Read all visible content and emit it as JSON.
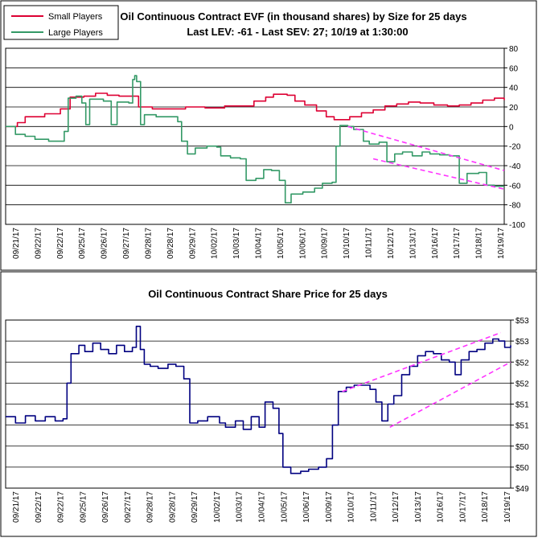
{
  "charts": {
    "top": {
      "title_line1": "Oil Continuous Contract EVF (in thousand shares) by Size for 25 days",
      "title_line2": "Last LEV: -61 - Last SEV: 27; 10/19 at 1:30:00",
      "legend": [
        {
          "label": "Small Players",
          "color": "#dd0033"
        },
        {
          "label": "Large Players",
          "color": "#339966"
        }
      ]
    },
    "bottom": {
      "title": "Oil Continuous Contract Share Price for 25 days"
    }
  },
  "colors": {
    "small_players": "#dd0033",
    "large_players": "#339966",
    "price": "#000080",
    "trendline": "#ff33ff",
    "grid": "#000000"
  },
  "chart_data": [
    {
      "type": "line",
      "title": "Oil Continuous Contract EVF (in thousand shares) by Size for 25 days",
      "subtitle": "Last LEV: -61 - Last SEV: 27; 10/19 at 1:30:00",
      "ylim": [
        -100,
        80
      ],
      "y_ticks": [
        "80",
        "60",
        "40",
        "20",
        "0",
        "-20",
        "-40",
        "-60",
        "-80",
        "-100"
      ],
      "y_axis_position": "right",
      "grid": true,
      "legend_position": "top-left",
      "categories": [
        "09/21/17",
        "09/22/17",
        "09/22/17",
        "09/25/17",
        "09/26/17",
        "09/27/17",
        "09/28/17",
        "09/28/17",
        "09/29/17",
        "10/02/17",
        "10/03/17",
        "10/04/17",
        "10/05/17",
        "10/06/17",
        "10/09/17",
        "10/10/17",
        "10/11/17",
        "10/12/17",
        "10/13/17",
        "10/16/17",
        "10/17/17",
        "10/18/17",
        "10/19/17"
      ],
      "series": [
        {
          "name": "Small Players",
          "color": "#dd0033",
          "points": [
            [
              0,
              0
            ],
            [
              0.6,
              4
            ],
            [
              1.0,
              10
            ],
            [
              2.0,
              13
            ],
            [
              2.8,
              18
            ],
            [
              3.3,
              30
            ],
            [
              4.0,
              31
            ],
            [
              4.6,
              34
            ],
            [
              5.2,
              32
            ],
            [
              5.8,
              31
            ],
            [
              6.3,
              31
            ],
            [
              6.8,
              20
            ],
            [
              7.5,
              18
            ],
            [
              8.2,
              18
            ],
            [
              9.2,
              20
            ],
            [
              10.2,
              19
            ],
            [
              11.2,
              21
            ],
            [
              12.0,
              21
            ],
            [
              12.7,
              26
            ],
            [
              13.3,
              30
            ],
            [
              13.7,
              33
            ],
            [
              14.4,
              32
            ],
            [
              14.8,
              26
            ],
            [
              15.3,
              22
            ],
            [
              15.9,
              16
            ],
            [
              16.4,
              10
            ],
            [
              16.8,
              7
            ],
            [
              17.6,
              10
            ],
            [
              18.2,
              14
            ],
            [
              18.8,
              17
            ],
            [
              19.4,
              21
            ],
            [
              20.0,
              23
            ],
            [
              20.6,
              25
            ],
            [
              21.2,
              24
            ],
            [
              21.9,
              22
            ],
            [
              22.6,
              21
            ],
            [
              23.2,
              22
            ],
            [
              23.8,
              24
            ],
            [
              24.4,
              27
            ],
            [
              25.0,
              29
            ],
            [
              25.5,
              27
            ]
          ]
        },
        {
          "name": "Large Players",
          "color": "#339966",
          "points": [
            [
              0,
              0
            ],
            [
              0.5,
              -8
            ],
            [
              1.0,
              -10
            ],
            [
              1.5,
              -13
            ],
            [
              2.2,
              -15
            ],
            [
              2.8,
              -15
            ],
            [
              3.0,
              -5
            ],
            [
              3.2,
              29
            ],
            [
              3.6,
              31
            ],
            [
              3.9,
              24
            ],
            [
              4.1,
              2
            ],
            [
              4.3,
              28
            ],
            [
              5.0,
              26
            ],
            [
              5.4,
              2
            ],
            [
              5.7,
              25
            ],
            [
              6.3,
              24
            ],
            [
              6.5,
              48
            ],
            [
              6.6,
              52
            ],
            [
              6.7,
              46
            ],
            [
              6.9,
              2
            ],
            [
              7.1,
              12
            ],
            [
              7.7,
              10
            ],
            [
              8.3,
              10
            ],
            [
              8.8,
              5
            ],
            [
              9.0,
              -15
            ],
            [
              9.3,
              -28
            ],
            [
              9.7,
              -22
            ],
            [
              10.3,
              -20
            ],
            [
              10.8,
              -21
            ],
            [
              11.0,
              -30
            ],
            [
              11.5,
              -32
            ],
            [
              12.0,
              -33
            ],
            [
              12.3,
              -55
            ],
            [
              12.8,
              -53
            ],
            [
              13.2,
              -44
            ],
            [
              13.6,
              -45
            ],
            [
              14.0,
              -55
            ],
            [
              14.3,
              -78
            ],
            [
              14.6,
              -69
            ],
            [
              15.2,
              -67
            ],
            [
              15.8,
              -63
            ],
            [
              16.2,
              -58
            ],
            [
              16.7,
              -57
            ],
            [
              16.9,
              -20
            ],
            [
              17.1,
              1
            ],
            [
              17.5,
              0
            ],
            [
              17.8,
              -3
            ],
            [
              18.3,
              -15
            ],
            [
              18.6,
              -18
            ],
            [
              19.1,
              -16
            ],
            [
              19.5,
              -36
            ],
            [
              19.9,
              -28
            ],
            [
              20.3,
              -26
            ],
            [
              20.8,
              -30
            ],
            [
              21.3,
              -26
            ],
            [
              21.7,
              -28
            ],
            [
              22.2,
              -29
            ],
            [
              22.7,
              -30
            ],
            [
              23.2,
              -58
            ],
            [
              23.6,
              -48
            ],
            [
              24.2,
              -47
            ],
            [
              24.6,
              -60
            ],
            [
              25.0,
              -61
            ],
            [
              25.5,
              -61
            ]
          ]
        }
      ],
      "trendlines": [
        [
          [
            17.5,
            0
          ],
          [
            25.5,
            -45
          ]
        ],
        [
          [
            18.8,
            -33
          ],
          [
            25.5,
            -64
          ]
        ]
      ]
    },
    {
      "type": "line",
      "title": "Oil Continuous Contract Share Price for 25 days",
      "ylim": [
        49,
        53
      ],
      "y_ticks": [
        "$53",
        "$53",
        "$52",
        "$52",
        "$51",
        "$51",
        "$50",
        "$50",
        "$49"
      ],
      "y_axis_position": "right",
      "grid": true,
      "categories": [
        "09/21/17",
        "09/22/17",
        "09/22/17",
        "09/25/17",
        "09/26/17",
        "09/27/17",
        "09/28/17",
        "09/28/17",
        "09/29/17",
        "10/02/17",
        "10/03/17",
        "10/04/17",
        "10/05/17",
        "10/06/17",
        "10/09/17",
        "10/10/17",
        "10/11/17",
        "10/12/17",
        "10/13/17",
        "10/16/17",
        "10/17/17",
        "10/18/17",
        "10/19/17"
      ],
      "series": [
        {
          "name": "Share Price",
          "color": "#000080",
          "points": [
            [
              0,
              50.7
            ],
            [
              0.5,
              50.55
            ],
            [
              1.0,
              50.72
            ],
            [
              1.5,
              50.6
            ],
            [
              2.0,
              50.7
            ],
            [
              2.5,
              50.6
            ],
            [
              2.9,
              50.65
            ],
            [
              3.1,
              51.5
            ],
            [
              3.3,
              52.2
            ],
            [
              3.7,
              52.4
            ],
            [
              4.0,
              52.25
            ],
            [
              4.4,
              52.45
            ],
            [
              4.8,
              52.3
            ],
            [
              5.2,
              52.2
            ],
            [
              5.6,
              52.4
            ],
            [
              6.0,
              52.25
            ],
            [
              6.4,
              52.35
            ],
            [
              6.6,
              52.85
            ],
            [
              6.8,
              52.3
            ],
            [
              7.0,
              51.95
            ],
            [
              7.3,
              51.9
            ],
            [
              7.7,
              51.85
            ],
            [
              8.2,
              51.95
            ],
            [
              8.6,
              51.9
            ],
            [
              9.0,
              51.6
            ],
            [
              9.3,
              50.55
            ],
            [
              9.7,
              50.6
            ],
            [
              10.2,
              50.7
            ],
            [
              10.8,
              50.55
            ],
            [
              11.1,
              50.45
            ],
            [
              11.6,
              50.6
            ],
            [
              12.0,
              50.4
            ],
            [
              12.4,
              50.7
            ],
            [
              12.8,
              50.45
            ],
            [
              13.1,
              51.05
            ],
            [
              13.5,
              50.9
            ],
            [
              13.8,
              50.3
            ],
            [
              14.0,
              49.5
            ],
            [
              14.4,
              49.35
            ],
            [
              14.9,
              49.4
            ],
            [
              15.3,
              49.45
            ],
            [
              15.8,
              49.5
            ],
            [
              16.2,
              49.7
            ],
            [
              16.5,
              50.5
            ],
            [
              16.8,
              51.3
            ],
            [
              17.2,
              51.4
            ],
            [
              17.6,
              51.45
            ],
            [
              18.0,
              51.45
            ],
            [
              18.4,
              51.35
            ],
            [
              18.7,
              51.05
            ],
            [
              19.0,
              50.6
            ],
            [
              19.3,
              51.0
            ],
            [
              19.6,
              51.2
            ],
            [
              20.0,
              51.7
            ],
            [
              20.4,
              51.9
            ],
            [
              20.8,
              52.15
            ],
            [
              21.2,
              52.25
            ],
            [
              21.6,
              52.2
            ],
            [
              22.0,
              52.05
            ],
            [
              22.4,
              52.0
            ],
            [
              22.7,
              51.7
            ],
            [
              23.0,
              52.05
            ],
            [
              23.4,
              52.25
            ],
            [
              23.8,
              52.3
            ],
            [
              24.2,
              52.45
            ],
            [
              24.6,
              52.55
            ],
            [
              24.9,
              52.5
            ],
            [
              25.2,
              52.35
            ],
            [
              25.5,
              52.4
            ]
          ]
        }
      ],
      "trendlines": [
        [
          [
            17.0,
            51.3
          ],
          [
            25.0,
            52.7
          ]
        ],
        [
          [
            19.4,
            50.45
          ],
          [
            25.5,
            52.0
          ]
        ]
      ]
    }
  ]
}
